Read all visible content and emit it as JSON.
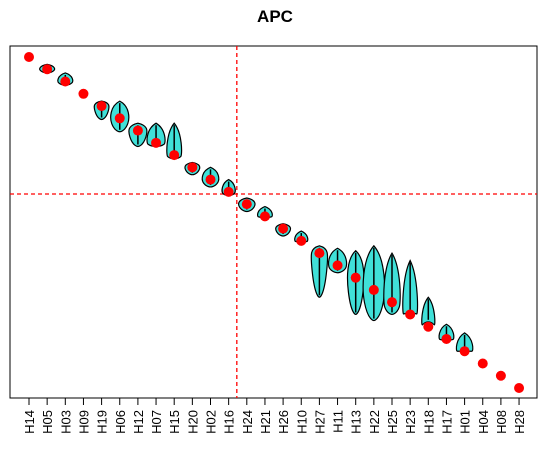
{
  "chart_data": {
    "type": "violin",
    "title": "APC",
    "xlabel": "",
    "ylabel": "",
    "categories": [
      "H14",
      "H05",
      "H03",
      "H09",
      "H19",
      "H06",
      "H12",
      "H07",
      "H15",
      "H20",
      "H02",
      "H16",
      "H24",
      "H21",
      "H26",
      "H10",
      "H27",
      "H11",
      "H13",
      "H22",
      "H25",
      "H23",
      "H18",
      "H17",
      "H01",
      "H04",
      "H08",
      "H28"
    ],
    "y_order_values": [
      1,
      2,
      3,
      4,
      5,
      6,
      7,
      8,
      9,
      10,
      11,
      12,
      13,
      14,
      15,
      16,
      17,
      18,
      19,
      20,
      21,
      22,
      23,
      24,
      25,
      26,
      27,
      28
    ],
    "medians": [
      1,
      2,
      3,
      4,
      5,
      6,
      7,
      8,
      9,
      10,
      11,
      12,
      13,
      14,
      15,
      16,
      17,
      18,
      19,
      20,
      21,
      22,
      23,
      24,
      25,
      26,
      27,
      28
    ],
    "ranges": [
      [
        1,
        1
      ],
      [
        1.6,
        2.3
      ],
      [
        2.3,
        3.3
      ],
      [
        4,
        4
      ],
      [
        4.6,
        6.1
      ],
      [
        4.6,
        7.1
      ],
      [
        6.4,
        8.3
      ],
      [
        6.4,
        8.3
      ],
      [
        6.4,
        9.3
      ],
      [
        9.6,
        10.6
      ],
      [
        10,
        11.6
      ],
      [
        11,
        12.3
      ],
      [
        12.5,
        13.6
      ],
      [
        13.2,
        14.1
      ],
      [
        14.6,
        15.6
      ],
      [
        15.2,
        16.1
      ],
      [
        16.4,
        20.6
      ],
      [
        16.6,
        18.6
      ],
      [
        16.8,
        22
      ],
      [
        16.4,
        22.5
      ],
      [
        17,
        22
      ],
      [
        17.6,
        21.9
      ],
      [
        20.6,
        22.6
      ],
      [
        22.8,
        24.1
      ],
      [
        23.5,
        25
      ],
      [
        26,
        26
      ],
      [
        27,
        27
      ],
      [
        28,
        28
      ]
    ],
    "widths": [
      0,
      0.45,
      0.45,
      0,
      0.45,
      0.55,
      0.55,
      0.55,
      0.45,
      0.45,
      0.5,
      0.4,
      0.5,
      0.45,
      0.45,
      0.4,
      0.5,
      0.55,
      0.5,
      0.65,
      0.5,
      0.45,
      0.4,
      0.45,
      0.5,
      0,
      0,
      0
    ],
    "reference_lines": {
      "vertical_after_category": "H16",
      "horizontal_at": 12.5
    },
    "violin_color": "#40e0d8",
    "point_color": "#ff0000",
    "ref_line_color": "#ff0000",
    "grid": false
  }
}
